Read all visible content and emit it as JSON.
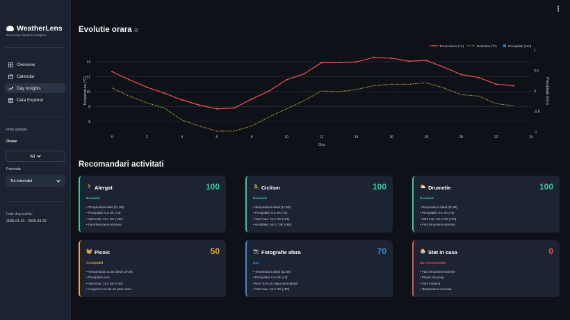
{
  "app": {
    "title": "WeatherLens",
    "subtitle": "Romanian Weather Analytics"
  },
  "nav": [
    {
      "label": "Overview",
      "icon": "grid-icon"
    },
    {
      "label": "Calendar",
      "icon": "calendar-icon"
    },
    {
      "label": "Day Insights",
      "icon": "trend-icon",
      "active": true
    },
    {
      "label": "Data Explorer",
      "icon": "table-icon"
    }
  ],
  "filters": {
    "title": "Filtre globale",
    "cities_label": "Orase",
    "cities_value": "All",
    "period_label": "Perioada",
    "period_value": "Tot intervalul"
  },
  "dates": {
    "label": "Date disponibile:",
    "value": "2026-01-01 - 2026-04-29"
  },
  "sections": {
    "hourly": "Evolutie orara",
    "recommendations": "Recomandari activitati"
  },
  "chart_data": {
    "type": "line",
    "xlabel": "Ora",
    "ylabel": "Temperatura (°C)",
    "y2label": "Precipitatii (mm)",
    "xlim": [
      -1,
      24
    ],
    "ylim": [
      4.6,
      15.6
    ],
    "y2lim": [
      -1,
      1
    ],
    "x_ticks": [
      0,
      2,
      4,
      6,
      8,
      10,
      12,
      14,
      16,
      18,
      20,
      22,
      24
    ],
    "y_ticks": [
      6,
      8,
      10,
      12,
      14
    ],
    "y2_ticks": [
      1,
      0.5,
      0,
      -0.5,
      -1
    ],
    "legend_position": "top-right",
    "grid": true,
    "x": [
      0,
      1,
      2,
      3,
      4,
      5,
      6,
      7,
      8,
      9,
      10,
      11,
      12,
      13,
      14,
      15,
      16,
      17,
      18,
      19,
      20,
      21,
      22,
      23
    ],
    "series": [
      {
        "name": "Temperatura (°C)",
        "color": "#ef5350",
        "style": "solid",
        "values": [
          12.7,
          11.6,
          10.6,
          9.8,
          8.9,
          8.2,
          7.7,
          7.8,
          9.0,
          10.1,
          11.6,
          12.4,
          13.9,
          13.9,
          14.0,
          14.6,
          14.5,
          14.1,
          14.2,
          13.3,
          12.3,
          11.9,
          11.0,
          10.8
        ]
      },
      {
        "name": "Resimtita (°C)",
        "color": "#e8c94a",
        "style": "dotted",
        "values": [
          10.5,
          9.4,
          8.5,
          7.8,
          6.2,
          5.4,
          4.7,
          4.7,
          5.4,
          6.6,
          7.7,
          8.8,
          10.1,
          10.0,
          10.3,
          10.8,
          11.0,
          11.0,
          11.2,
          10.5,
          9.6,
          9.4,
          8.4,
          8.1
        ]
      },
      {
        "name": "Precipitatii (mm)",
        "color": "#3d7fb6",
        "style": "bar",
        "axis": "y2",
        "values": [
          0,
          0,
          0,
          0,
          0,
          0,
          0,
          0,
          0,
          0,
          0,
          0,
          0,
          0,
          0,
          0,
          0,
          0,
          0,
          0,
          0,
          0,
          0,
          0
        ]
      }
    ]
  },
  "activities": [
    {
      "icon": "🏃",
      "icon_name": "running-icon",
      "name": "Alergat",
      "score": "100",
      "verdict": "Excelent",
      "color": "#2ecc9a",
      "reasons": [
        "Temperatura ideal (11.58)",
        "Precipitatii: 0.0 OK (<3)",
        "Vant max. 15.4 OK (<30)",
        "Fara fenomene extreme"
      ]
    },
    {
      "icon": "🚴",
      "icon_name": "cycling-icon",
      "name": "Ciclism",
      "score": "100",
      "verdict": "Excelent",
      "color": "#2ecc9a",
      "reasons": [
        "Temperatura ideal (11.58)",
        "Precipitatii: 0.0 OK (<1)",
        "Vant max. 15.4 OK (<25)",
        "Umiditate: 59.17 OK (<85)"
      ]
    },
    {
      "icon": "⛅",
      "icon_name": "hiking-icon",
      "name": "Drumetie",
      "score": "100",
      "verdict": "Excelent",
      "color": "#2ecc9a",
      "reasons": [
        "Temperatura ideal (11.58)",
        "Precipitatii: 0.0 OK (<5)",
        "Vant max. 15.4 OK (<40)",
        "Fara fenomene extreme"
      ]
    },
    {
      "icon": "🧺",
      "icon_name": "picnic-icon",
      "name": "Picnic",
      "score": "50",
      "verdict": "Acceptabil",
      "color": "#f0a63a",
      "reasons": [
        "Temperatura 11.58 (ideal 18-28)",
        "Precipitatii zero",
        "Vant max. 15.4 OK (<20)",
        "Acoperire nori 81.21 prea mare"
      ]
    },
    {
      "icon": "📷",
      "icon_name": "camera-icon",
      "name": "Fotografie afara",
      "score": "70",
      "verdict": "Bun",
      "color": "#3d8bd8",
      "reasons": [
        "Temperatura ideal (11.58)",
        "Precipitatii: 0.0 OK (<3)",
        "Nori: 81% (in afara intervalului)",
        "Vant max. 15.4 OK (<50)"
      ]
    },
    {
      "icon": "🏠",
      "icon_name": "house-icon",
      "name": "Stat in casa",
      "score": "0",
      "verdict": "Nu recomandam",
      "color": "#ef4f4f",
      "reasons": [
        "Fara fenomene extreme",
        "Ploaie sub prag",
        "Vant moderat",
        "Temperatura normala"
      ]
    }
  ]
}
